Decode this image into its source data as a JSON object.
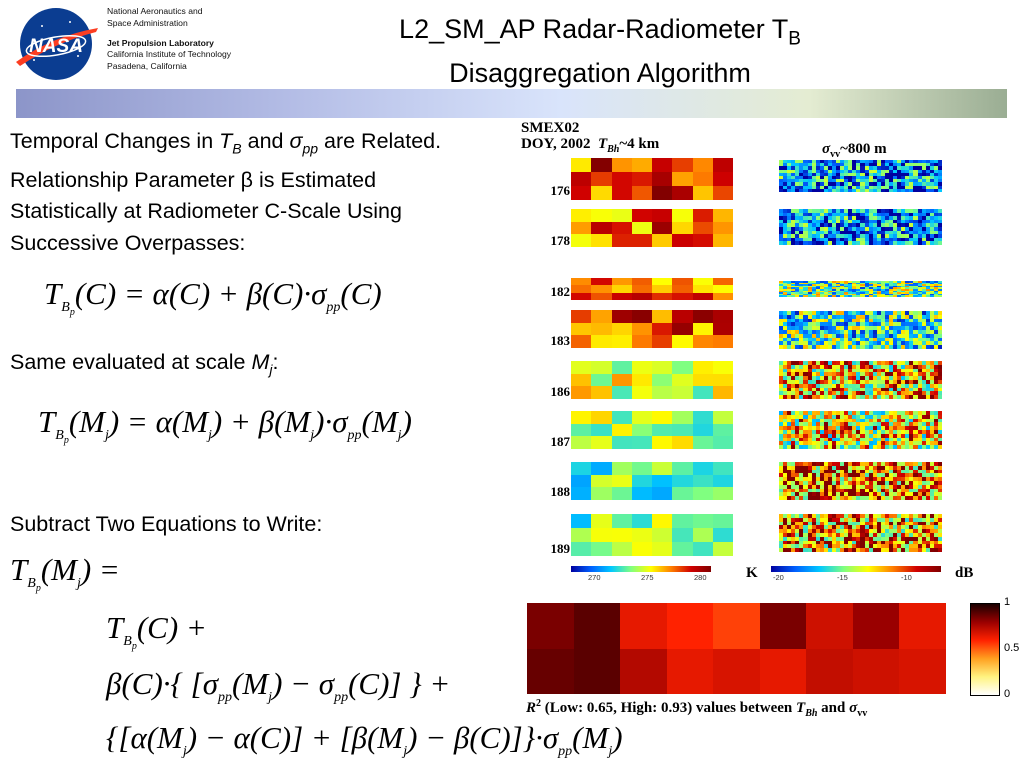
{
  "header": {
    "org": [
      "National Aeronautics and",
      "Space Administration"
    ],
    "lab": [
      "Jet Propulsion Laboratory",
      "California Institute of Technology",
      "Pasadena, California"
    ],
    "logo_text": "NASA",
    "title_line1": "L2_SM_AP Radar-Radiometer T",
    "title_sub": "B",
    "title_line2": "Disaggregation Algorithm"
  },
  "left": {
    "intro": {
      "p1": "Temporal Changes in ",
      "t": "T",
      "tsub": "B",
      "p2": " and ",
      "sigma": "σ",
      "sigsub": "pp",
      "p3": " are Related. Relationship Parameter β is Estimated Statistically at Radiometer C-Scale Using Successive Overpasses:"
    },
    "same": {
      "p1": "Same evaluated at scale ",
      "m": "M",
      "msub": "j",
      "p2": ":"
    },
    "subtract": "Subtract Two Equations to Write:"
  },
  "panel": {
    "smex": "SMEX02",
    "doy_header": "DOY, 2002",
    "tb_label": "T",
    "tb_sub": "Bh",
    "tb_res": "~4 km",
    "sig_label": "σ",
    "sig_sub": "vv",
    "sig_res": "~800 m",
    "doys": [
      "176",
      "178",
      "182",
      "183",
      "186",
      "187",
      "188",
      "189"
    ],
    "tb_ticks": [
      "270",
      "275",
      "280"
    ],
    "tb_unit": "K",
    "sig_ticks": [
      "-20",
      "-15",
      "-10"
    ],
    "sig_unit": "dB",
    "r2_ticks": [
      "1",
      "0.5",
      "0"
    ],
    "r2_caption": {
      "r": "R",
      "sup": "2",
      "text": " (Low: 0.65, High: 0.93) values between ",
      "t": "T",
      "tsub": "Bh",
      "and": " and ",
      "sig": "σ",
      "sigsub": "vv"
    }
  },
  "colors": {
    "header_bar": [
      "#8c95c9",
      "#d9e4fb",
      "#9aad93"
    ],
    "r2_high": "#3a0000",
    "r2_low": "#ff2a00"
  }
}
